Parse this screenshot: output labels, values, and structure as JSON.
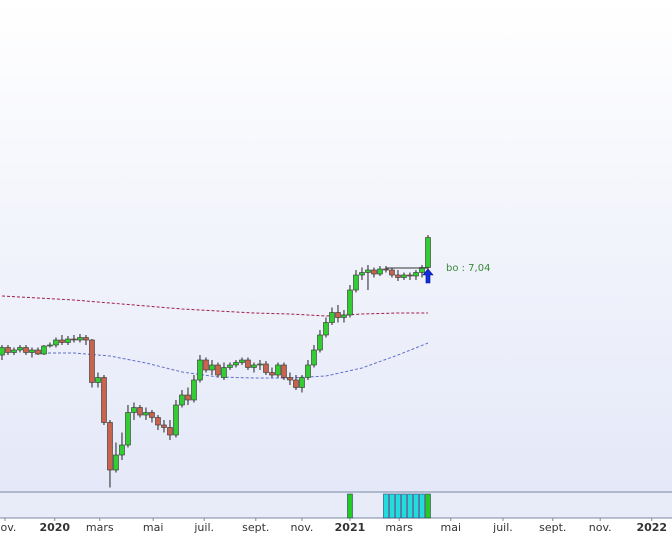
{
  "chart_data": {
    "type": "candlestick",
    "xlim": [
      -0.33,
      111.67
    ],
    "ylim": [
      2.56,
      12.4
    ],
    "up_color": "#33cc33",
    "down_color": "#c8644e",
    "candles": [
      [
        5.3,
        5.5,
        5.2,
        5.45
      ],
      [
        5.45,
        5.5,
        5.3,
        5.35
      ],
      [
        5.35,
        5.45,
        5.3,
        5.4
      ],
      [
        5.4,
        5.5,
        5.35,
        5.45
      ],
      [
        5.45,
        5.5,
        5.3,
        5.35
      ],
      [
        5.35,
        5.45,
        5.25,
        5.4
      ],
      [
        5.4,
        5.45,
        5.3,
        5.32
      ],
      [
        5.32,
        5.5,
        5.3,
        5.48
      ],
      [
        5.48,
        5.55,
        5.45,
        5.5
      ],
      [
        5.5,
        5.65,
        5.45,
        5.6
      ],
      [
        5.6,
        5.7,
        5.5,
        5.55
      ],
      [
        5.55,
        5.68,
        5.5,
        5.62
      ],
      [
        5.62,
        5.7,
        5.55,
        5.6
      ],
      [
        5.6,
        5.72,
        5.55,
        5.65
      ],
      [
        5.65,
        5.7,
        5.5,
        5.6
      ],
      [
        5.6,
        5.62,
        4.65,
        4.75
      ],
      [
        4.75,
        4.95,
        4.65,
        4.85
      ],
      [
        4.85,
        4.9,
        3.9,
        3.95
      ],
      [
        3.95,
        4.0,
        2.65,
        3.0
      ],
      [
        3.0,
        3.55,
        2.95,
        3.3
      ],
      [
        3.3,
        3.75,
        3.2,
        3.5
      ],
      [
        3.5,
        4.3,
        3.45,
        4.15
      ],
      [
        4.15,
        4.35,
        4.0,
        4.25
      ],
      [
        4.25,
        4.3,
        4.05,
        4.1
      ],
      [
        4.1,
        4.25,
        4.0,
        4.15
      ],
      [
        4.15,
        4.2,
        3.95,
        4.05
      ],
      [
        4.05,
        4.1,
        3.8,
        3.9
      ],
      [
        3.9,
        4.0,
        3.75,
        3.85
      ],
      [
        3.85,
        4.0,
        3.6,
        3.7
      ],
      [
        3.7,
        4.4,
        3.65,
        4.3
      ],
      [
        4.3,
        4.6,
        4.25,
        4.5
      ],
      [
        4.5,
        4.65,
        4.3,
        4.4
      ],
      [
        4.4,
        4.9,
        4.35,
        4.8
      ],
      [
        4.8,
        5.3,
        4.75,
        5.2
      ],
      [
        5.2,
        5.25,
        4.95,
        5.0
      ],
      [
        5.0,
        5.2,
        4.9,
        5.1
      ],
      [
        5.1,
        5.15,
        4.85,
        4.9
      ],
      [
        4.85,
        5.15,
        4.8,
        5.05
      ],
      [
        5.05,
        5.15,
        5.0,
        5.1
      ],
      [
        5.1,
        5.2,
        5.05,
        5.15
      ],
      [
        5.15,
        5.25,
        5.1,
        5.2
      ],
      [
        5.2,
        5.25,
        5.0,
        5.05
      ],
      [
        5.05,
        5.15,
        4.95,
        5.1
      ],
      [
        5.1,
        5.2,
        5.0,
        5.12
      ],
      [
        5.12,
        5.18,
        4.9,
        4.95
      ],
      [
        4.95,
        5.05,
        4.85,
        4.9
      ],
      [
        4.9,
        5.15,
        4.85,
        5.1
      ],
      [
        5.1,
        5.15,
        4.8,
        4.85
      ],
      [
        4.85,
        4.95,
        4.7,
        4.8
      ],
      [
        4.8,
        4.9,
        4.6,
        4.65
      ],
      [
        4.65,
        4.9,
        4.55,
        4.85
      ],
      [
        4.85,
        5.2,
        4.8,
        5.1
      ],
      [
        5.1,
        5.5,
        5.05,
        5.4
      ],
      [
        5.4,
        5.8,
        5.35,
        5.7
      ],
      [
        5.7,
        6.05,
        5.65,
        5.95
      ],
      [
        5.95,
        6.25,
        5.9,
        6.15
      ],
      [
        6.15,
        6.3,
        5.95,
        6.05
      ],
      [
        6.05,
        6.2,
        5.95,
        6.1
      ],
      [
        6.1,
        6.7,
        6.05,
        6.6
      ],
      [
        6.6,
        7.0,
        6.55,
        6.9
      ],
      [
        6.9,
        7.05,
        6.8,
        6.95
      ],
      [
        6.95,
        7.1,
        6.6,
        7.0
      ],
      [
        7.0,
        7.05,
        6.85,
        6.92
      ],
      [
        6.92,
        7.08,
        6.88,
        7.02
      ],
      [
        7.02,
        7.08,
        6.95,
        7.0
      ],
      [
        7.0,
        7.05,
        6.85,
        6.9
      ],
      [
        6.9,
        7.0,
        6.78,
        6.85
      ],
      [
        6.85,
        6.95,
        6.8,
        6.9
      ],
      [
        6.9,
        6.95,
        6.8,
        6.88
      ],
      [
        6.88,
        7.0,
        6.8,
        6.95
      ],
      [
        6.95,
        7.1,
        6.85,
        7.05
      ],
      [
        7.05,
        7.7,
        7.0,
        7.65
      ]
    ],
    "x": [
      0,
      6,
      12,
      18,
      24,
      30,
      36,
      42,
      48,
      54,
      60,
      66,
      71
    ],
    "series": [
      {
        "color": "#a0204a",
        "values": [
          6.48,
          6.44,
          6.4,
          6.34,
          6.28,
          6.22,
          6.18,
          6.14,
          6.12,
          6.08,
          6.12,
          6.14,
          6.14
        ]
      },
      {
        "color": "#6070c8",
        "values": [
          null,
          5.34,
          5.34,
          5.28,
          5.14,
          4.96,
          4.86,
          4.84,
          4.84,
          4.88,
          5.04,
          5.3,
          5.54
        ]
      }
    ],
    "annotation": {
      "value": 7.04,
      "label": "bo : 7,04",
      "x_start": 64,
      "x_end": 71,
      "color": "#3a8a3a"
    },
    "signals": [
      {
        "x": 58,
        "color": "#22cc22"
      },
      {
        "x": 64,
        "color": "#22dddd"
      },
      {
        "x": 65,
        "color": "#22dddd"
      },
      {
        "x": 66,
        "color": "#22dddd"
      },
      {
        "x": 67,
        "color": "#22dddd"
      },
      {
        "x": 68,
        "color": "#22dddd"
      },
      {
        "x": 69,
        "color": "#22dddd"
      },
      {
        "x": 70,
        "color": "#22dddd"
      },
      {
        "x": 71,
        "color": "#22cc22"
      }
    ],
    "xticks": [
      {
        "value": 0.5,
        "label": "nov."
      },
      {
        "value": 8.8,
        "label": "2020",
        "bold": true
      },
      {
        "value": 16.3,
        "label": "mars"
      },
      {
        "value": 25.2,
        "label": "mai"
      },
      {
        "value": 33.7,
        "label": "juil."
      },
      {
        "value": 42.3,
        "label": "sept."
      },
      {
        "value": 50,
        "label": "nov."
      },
      {
        "value": 58,
        "label": "2021",
        "bold": true
      },
      {
        "value": 66.2,
        "label": "mars"
      },
      {
        "value": 74.8,
        "label": "mai"
      },
      {
        "value": 83.5,
        "label": "juil."
      },
      {
        "value": 91.8,
        "label": "sept."
      },
      {
        "value": 99.7,
        "label": "nov."
      },
      {
        "value": 108.3,
        "label": "2022",
        "bold": true
      }
    ]
  }
}
